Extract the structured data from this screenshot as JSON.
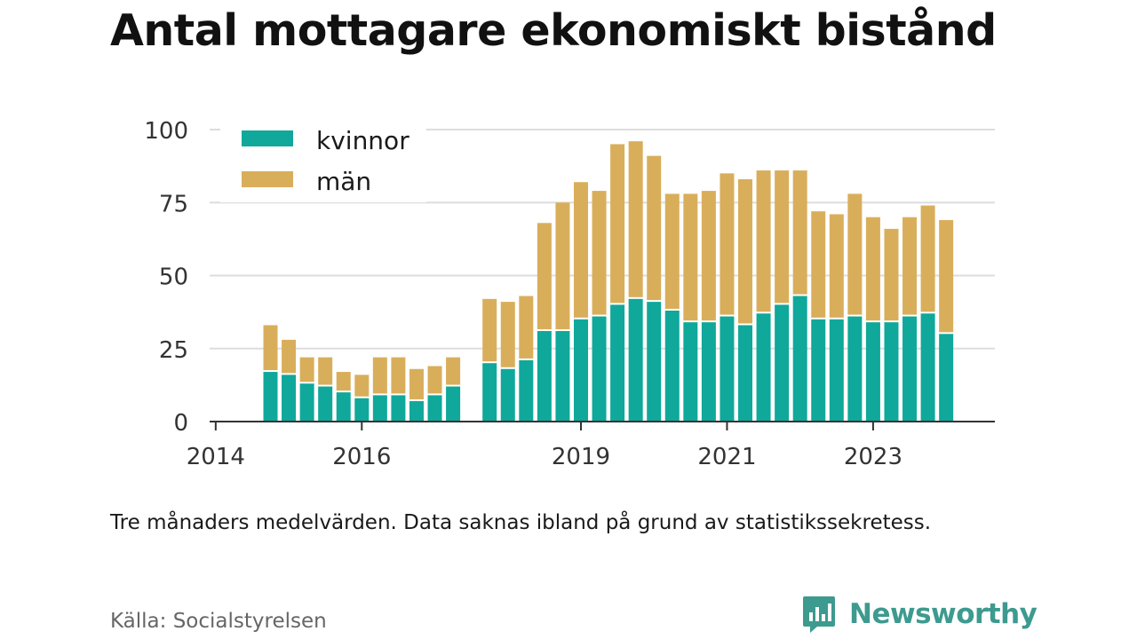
{
  "title": "Antal mottagare ekonomiskt bistånd",
  "note": "Tre månaders medelvärden. Data saknas ibland på grund av statistikssekretess.",
  "source": "Källa: Socialstyrelsen",
  "brand": {
    "name": "Newsworthy",
    "color": "#3d9a8f"
  },
  "colors": {
    "kvinnor": "#0fa89b",
    "man": "#d9ae5b",
    "grid": "#dddddd",
    "axis": "#333333"
  },
  "chart_data": {
    "type": "bar",
    "stacked": true,
    "grid": true,
    "legend_position": "top-left",
    "ylim": [
      0,
      100
    ],
    "yticks": [
      0,
      25,
      50,
      75,
      100
    ],
    "xticks": [
      "2014",
      "2016",
      "2019",
      "2021",
      "2023"
    ],
    "x_range": [
      2013.917,
      2024.667
    ],
    "x": [
      2014.75,
      2015.0,
      2015.25,
      2015.5,
      2015.75,
      2016.0,
      2016.25,
      2016.5,
      2016.75,
      2017.0,
      2017.25,
      2017.5,
      2017.75,
      2018.0,
      2018.25,
      2018.5,
      2018.75,
      2019.0,
      2019.25,
      2019.5,
      2019.75,
      2020.0,
      2020.25,
      2020.5,
      2020.75,
      2021.0,
      2021.25,
      2021.5,
      2021.75,
      2022.0,
      2022.25,
      2022.5,
      2022.75,
      2023.0,
      2023.25,
      2023.5,
      2023.75,
      2024.0,
      2024.25
    ],
    "series": [
      {
        "name": "kvinnor",
        "values": [
          17,
          16,
          13,
          12,
          10,
          8,
          9,
          9,
          7,
          9,
          12,
          null,
          20,
          18,
          21,
          31,
          31,
          35,
          36,
          40,
          42,
          41,
          38,
          34,
          34,
          36,
          33,
          37,
          40,
          43,
          35,
          35,
          36,
          34,
          34,
          36,
          37,
          30,
          null
        ]
      },
      {
        "name": "män",
        "values": [
          16,
          12,
          9,
          10,
          7,
          8,
          13,
          13,
          11,
          10,
          10,
          null,
          22,
          23,
          22,
          37,
          44,
          47,
          43,
          55,
          54,
          50,
          40,
          44,
          45,
          49,
          50,
          49,
          46,
          43,
          37,
          36,
          42,
          36,
          32,
          34,
          37,
          39,
          null
        ]
      }
    ]
  }
}
